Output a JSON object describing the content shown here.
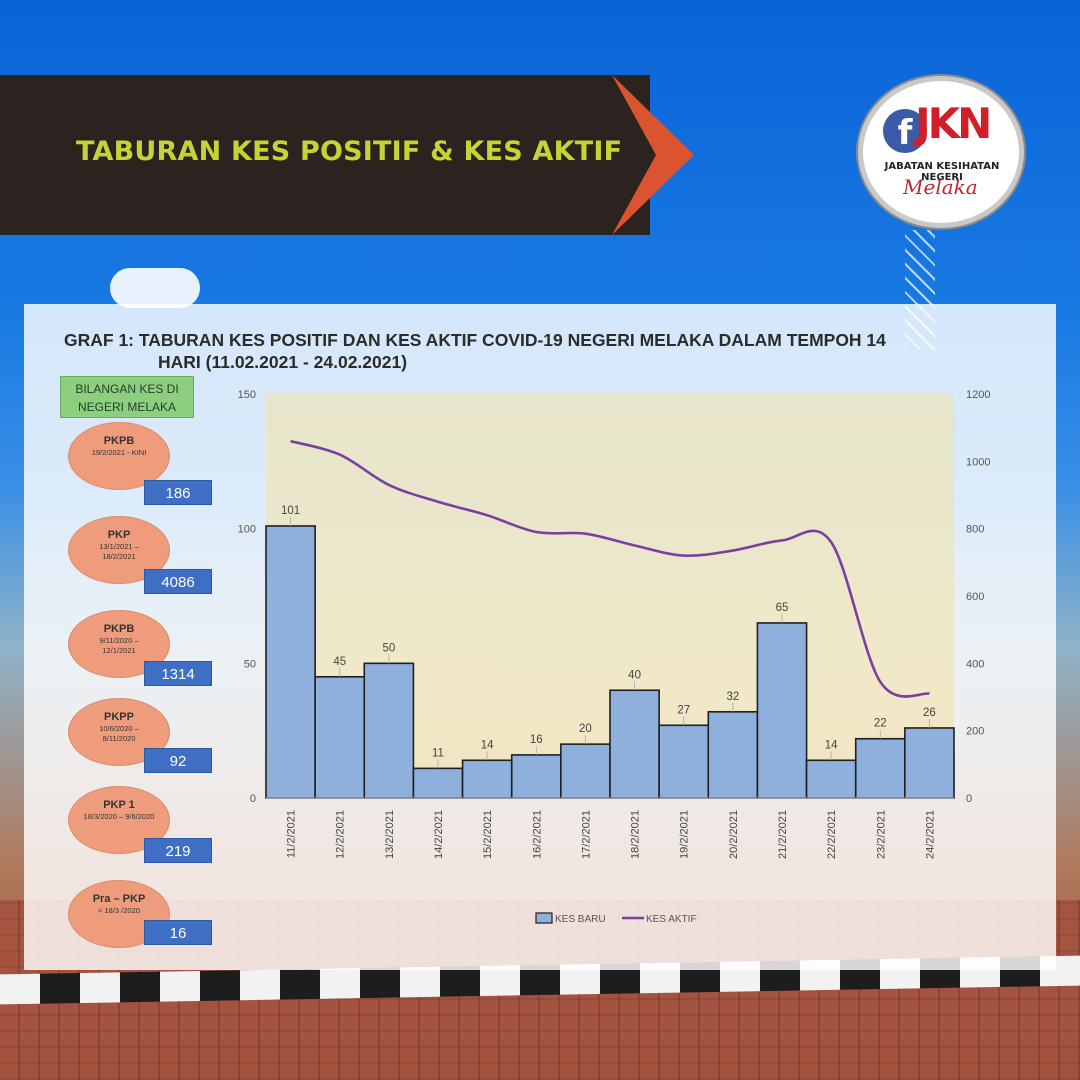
{
  "banner": {
    "title": "TABURAN KES POSITIF & KES AKTIF"
  },
  "logo": {
    "text": "JKN",
    "subtitle": "JABATAN KESIHATAN NEGERI",
    "script": "Melaka"
  },
  "sidebar": {
    "header": "BILANGAN KES DI NEGERI MELAKA",
    "phases": [
      {
        "name": "PKPB",
        "dates": "19/2/2021 - KINI",
        "count": "186"
      },
      {
        "name": "PKP",
        "dates": "13/1/2021 – 18/2/2021",
        "count": "4086"
      },
      {
        "name": "PKPB",
        "dates": "9/11/2020 – 12/1/2021",
        "count": "1314"
      },
      {
        "name": "PKPP",
        "dates": "10/6/2020 – 8/11/2020",
        "count": "92"
      },
      {
        "name": "PKP 1",
        "dates": "18/3/2020 – 9/6/2020",
        "count": "219"
      },
      {
        "name": "Pra – PKP",
        "dates": "< 18/3 /2020",
        "count": "16"
      }
    ]
  },
  "chart_data": {
    "type": "bar",
    "title": "GRAF 1: TABURAN KES POSITIF DAN KES AKTIF COVID-19 NEGERI MELAKA DALAM TEMPOH 14",
    "title_line2": "HARI (11.02.2021 - 24.02.2021)",
    "categories": [
      "11/2/2021",
      "12/2/2021",
      "13/2/2021",
      "14/2/2021",
      "15/2/2021",
      "16/2/2021",
      "17/2/2021",
      "18/2/2021",
      "19/2/2021",
      "20/2/2021",
      "21/2/2021",
      "22/2/2021",
      "23/2/2021",
      "24/2/2021"
    ],
    "series": [
      {
        "name": "KES BARU",
        "type": "bar",
        "axis": "left",
        "color": "#8fb0dd",
        "values": [
          101,
          45,
          50,
          11,
          14,
          16,
          20,
          40,
          27,
          32,
          65,
          14,
          22,
          26
        ]
      },
      {
        "name": "KES AKTIF",
        "type": "line",
        "axis": "right",
        "color": "#7b3fa0",
        "values": [
          1060,
          1020,
          930,
          880,
          840,
          790,
          785,
          750,
          720,
          735,
          765,
          760,
          345,
          310
        ]
      }
    ],
    "ylim_left": [
      0,
      150
    ],
    "yticks_left": [
      0,
      50,
      100,
      150
    ],
    "ylim_right": [
      0,
      1200
    ],
    "yticks_right": [
      0,
      200,
      400,
      600,
      800,
      1000,
      1200
    ],
    "grid": false,
    "legend": "bottom"
  }
}
